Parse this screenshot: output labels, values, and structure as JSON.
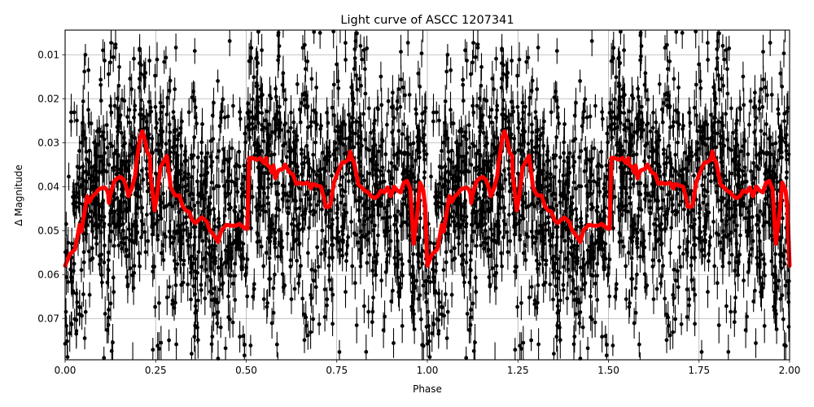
{
  "chart_data": {
    "type": "scatter",
    "title": "Light curve of ASCC 1207341",
    "xlabel": "Phase",
    "ylabel": "Δ Magnitude",
    "xlim": [
      0.0,
      2.0
    ],
    "ylim": [
      0.0794,
      0.0044
    ],
    "y_inverted": true,
    "grid": true,
    "legend": null,
    "xticks": [
      0.0,
      0.25,
      0.5,
      0.75,
      1.0,
      1.25,
      1.5,
      1.75,
      2.0
    ],
    "xtick_labels": [
      "0.00",
      "0.25",
      "0.50",
      "0.75",
      "1.00",
      "1.25",
      "1.50",
      "1.75",
      "2.00"
    ],
    "yticks": [
      0.01,
      0.02,
      0.03,
      0.04,
      0.05,
      0.06,
      0.07
    ],
    "ytick_labels": [
      "0.01",
      "0.02",
      "0.03",
      "0.04",
      "0.05",
      "0.06",
      "0.07"
    ],
    "series": [
      {
        "name": "observations",
        "kind": "errorbar-scatter",
        "color": "#000000",
        "marker": "circle",
        "typical_error": 0.0033,
        "scatter_about_model": 0.012,
        "note": "thousands of points folded on phase, repeated for phase 1-2"
      },
      {
        "name": "binned model",
        "kind": "line",
        "color": "#ff0000",
        "linewidth": 5,
        "phase": [
          0.0,
          0.013,
          0.027,
          0.034,
          0.04,
          0.045,
          0.054,
          0.061,
          0.067,
          0.076,
          0.085,
          0.092,
          0.099,
          0.108,
          0.115,
          0.119,
          0.121,
          0.126,
          0.135,
          0.144,
          0.153,
          0.162,
          0.171,
          0.175,
          0.184,
          0.193,
          0.198,
          0.207,
          0.213,
          0.22,
          0.227,
          0.234,
          0.236,
          0.247,
          0.254,
          0.263,
          0.281,
          0.292,
          0.303,
          0.315,
          0.324,
          0.333,
          0.342,
          0.351,
          0.36,
          0.369,
          0.378,
          0.391,
          0.4,
          0.409,
          0.422,
          0.431,
          0.445,
          0.459,
          0.472,
          0.481,
          0.49,
          0.499,
          0.503,
          0.508,
          0.517,
          0.53,
          0.539,
          0.548,
          0.555,
          0.557,
          0.566,
          0.571,
          0.575,
          0.58,
          0.589,
          0.602,
          0.607,
          0.62,
          0.629,
          0.638,
          0.647,
          0.656,
          0.67,
          0.679,
          0.683,
          0.697,
          0.706,
          0.715,
          0.719,
          0.728,
          0.733,
          0.742,
          0.755,
          0.764,
          0.773,
          0.782,
          0.787,
          0.791,
          0.798,
          0.809,
          0.827,
          0.836,
          0.845,
          0.854,
          0.863,
          0.872,
          0.881,
          0.89,
          0.899,
          0.908,
          0.917,
          0.926,
          0.935,
          0.944,
          0.953,
          0.962,
          0.971,
          0.98,
          0.989,
          0.994,
          1.0
        ],
        "dmag": [
          0.058,
          0.0554,
          0.0543,
          0.0515,
          0.0487,
          0.0502,
          0.0456,
          0.0422,
          0.0435,
          0.0422,
          0.0415,
          0.0407,
          0.0404,
          0.0402,
          0.0407,
          0.0417,
          0.0437,
          0.0415,
          0.0389,
          0.0381,
          0.0378,
          0.0385,
          0.0407,
          0.0422,
          0.0404,
          0.0376,
          0.0339,
          0.0289,
          0.0274,
          0.0293,
          0.0322,
          0.033,
          0.0376,
          0.0454,
          0.042,
          0.0356,
          0.033,
          0.0402,
          0.042,
          0.042,
          0.0444,
          0.0454,
          0.0457,
          0.0476,
          0.0483,
          0.0476,
          0.047,
          0.048,
          0.05,
          0.0509,
          0.0526,
          0.05,
          0.0487,
          0.0489,
          0.0489,
          0.0485,
          0.0491,
          0.0496,
          0.0496,
          0.0335,
          0.0335,
          0.0339,
          0.0335,
          0.0346,
          0.0335,
          0.035,
          0.0357,
          0.0368,
          0.0352,
          0.0381,
          0.0363,
          0.0359,
          0.035,
          0.0368,
          0.0372,
          0.0394,
          0.0391,
          0.0394,
          0.0391,
          0.0404,
          0.0394,
          0.0398,
          0.04,
          0.0428,
          0.0446,
          0.0446,
          0.0439,
          0.0391,
          0.0363,
          0.0346,
          0.0344,
          0.0339,
          0.032,
          0.0335,
          0.0346,
          0.0394,
          0.0409,
          0.0413,
          0.0422,
          0.0426,
          0.0422,
          0.0409,
          0.0413,
          0.0402,
          0.0422,
          0.04,
          0.0409,
          0.0413,
          0.0391,
          0.0387,
          0.0406,
          0.053,
          0.047,
          0.0391,
          0.0409,
          0.0446,
          0.058
        ]
      }
    ]
  }
}
